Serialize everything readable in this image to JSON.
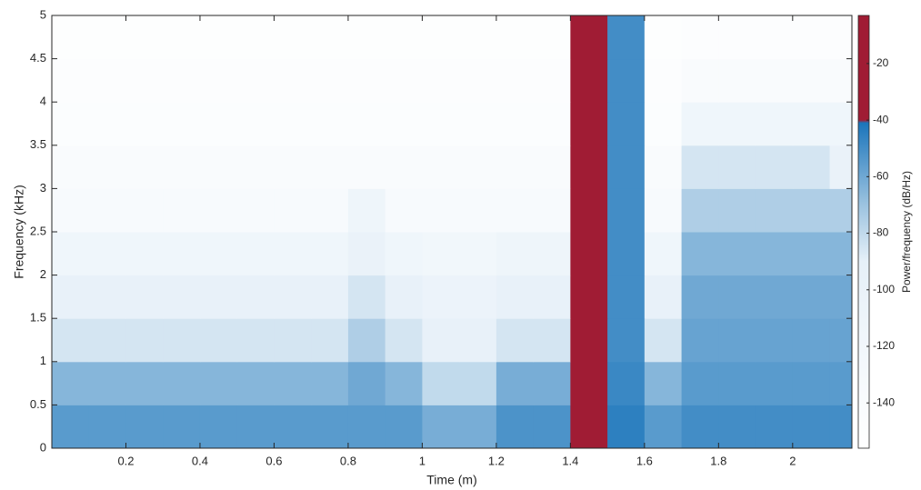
{
  "chart_data": {
    "type": "heatmap",
    "xlabel": "Time (m)",
    "ylabel": "Frequency (kHz)",
    "colorbar_label": "Power/frequency (dB/Hz)",
    "x": [
      0.05,
      0.15,
      0.25,
      0.35,
      0.45,
      0.55,
      0.65,
      0.75,
      0.85,
      0.95,
      1.05,
      1.15,
      1.25,
      1.35,
      1.45,
      1.55,
      1.65,
      1.75,
      1.85,
      1.95,
      2.05,
      2.15
    ],
    "y": [
      0.25,
      0.75,
      1.25,
      1.75,
      2.25,
      2.75,
      3.25,
      3.75,
      4.25,
      4.75
    ],
    "values": [
      [
        -55,
        -55,
        -55,
        -55,
        -55,
        -55,
        -55,
        -55,
        -55,
        -55,
        -62,
        -62,
        -52,
        -52,
        -30,
        -45,
        -55,
        -50,
        -50,
        -50,
        -50,
        -50
      ],
      [
        -65,
        -65,
        -65,
        -65,
        -65,
        -65,
        -65,
        -65,
        -60,
        -65,
        -80,
        -80,
        -62,
        -62,
        -30,
        -48,
        -65,
        -55,
        -55,
        -55,
        -55,
        -55
      ],
      [
        -85,
        -85,
        -85,
        -85,
        -85,
        -85,
        -85,
        -85,
        -75,
        -85,
        -95,
        -95,
        -85,
        -85,
        -30,
        -50,
        -85,
        -58,
        -58,
        -58,
        -58,
        -58
      ],
      [
        -95,
        -95,
        -95,
        -95,
        -95,
        -95,
        -95,
        -95,
        -85,
        -95,
        -105,
        -105,
        -95,
        -95,
        -32,
        -50,
        -95,
        -60,
        -60,
        -60,
        -60,
        -60
      ],
      [
        -115,
        -115,
        -115,
        -115,
        -115,
        -115,
        -115,
        -115,
        -100,
        -115,
        -120,
        -120,
        -112,
        -112,
        -32,
        -50,
        -115,
        -65,
        -65,
        -65,
        -65,
        -65
      ],
      [
        -135,
        -135,
        -135,
        -135,
        -135,
        -135,
        -135,
        -135,
        -110,
        -135,
        -135,
        -135,
        -135,
        -135,
        -32,
        -50,
        -135,
        -75,
        -75,
        -75,
        -75,
        -75
      ],
      [
        -140,
        -140,
        -140,
        -140,
        -140,
        -140,
        -140,
        -140,
        -140,
        -140,
        -140,
        -140,
        -140,
        -140,
        -33,
        -50,
        -140,
        -85,
        -85,
        -85,
        -85,
        -100
      ],
      [
        -145,
        -145,
        -145,
        -145,
        -145,
        -145,
        -145,
        -145,
        -145,
        -145,
        -145,
        -145,
        -145,
        -145,
        -33,
        -50,
        -145,
        -115,
        -115,
        -115,
        -115,
        -115
      ],
      [
        -148,
        -148,
        -148,
        -148,
        -148,
        -148,
        -148,
        -148,
        -148,
        -148,
        -148,
        -148,
        -148,
        -148,
        -34,
        -50,
        -148,
        -140,
        -140,
        -140,
        -140,
        -140
      ],
      [
        -150,
        -150,
        -150,
        -150,
        -150,
        -150,
        -150,
        -150,
        -150,
        -150,
        -150,
        -150,
        -150,
        -150,
        -35,
        -50,
        -150,
        -148,
        -148,
        -148,
        -148,
        -148
      ]
    ],
    "xlim": [
      0,
      2.16
    ],
    "xticks": [
      0.2,
      0.4,
      0.6,
      0.8,
      1,
      1.2,
      1.4,
      1.6,
      1.8,
      2
    ],
    "ylim": [
      0,
      5
    ],
    "yticks": [
      0,
      0.5,
      1,
      1.5,
      2,
      2.5,
      3,
      3.5,
      4,
      4.5,
      5
    ],
    "clim": [
      -156,
      -3
    ],
    "cticks": [
      -140,
      -120,
      -100,
      -80,
      -60,
      -40,
      -20
    ],
    "colormap": [
      {
        "value": -156,
        "color": "#ffffff"
      },
      {
        "value": -90,
        "color": "#e6f0f8"
      },
      {
        "value": -70,
        "color": "#9cc3e0"
      },
      {
        "value": -41,
        "color": "#1b75bb"
      },
      {
        "value": -40,
        "color": "#a01c34"
      },
      {
        "value": -3,
        "color": "#a01c34"
      }
    ]
  }
}
